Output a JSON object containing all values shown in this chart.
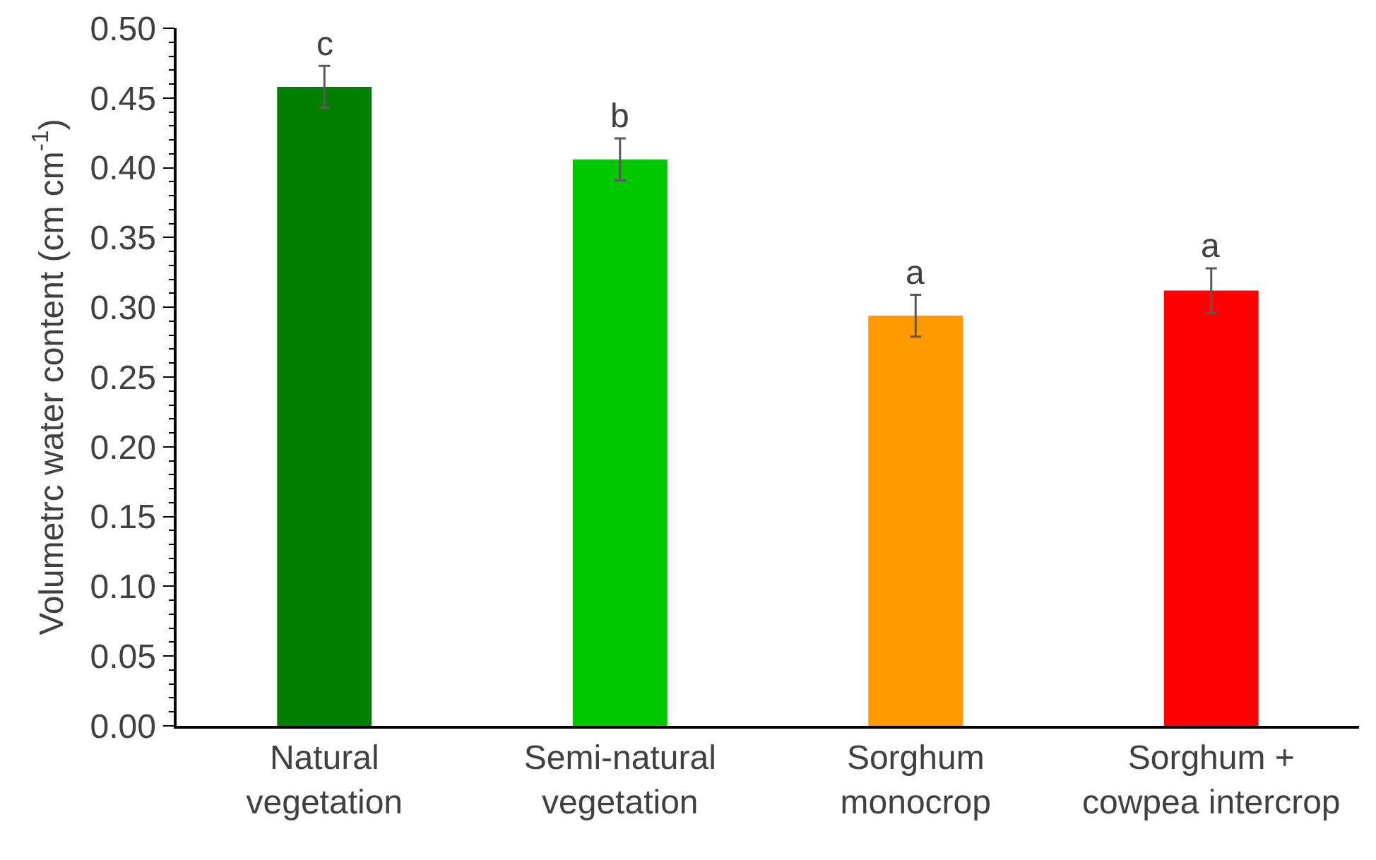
{
  "chart_data": {
    "type": "bar",
    "ylabel": "Volumetrc water content (cm cm$^{-1}$)",
    "categories": [
      "Natural vegetation",
      "Semi-natural vegetation",
      "Sorghum monocrop",
      "Sorghum + cowpea intercrop"
    ],
    "values": [
      0.458,
      0.406,
      0.294,
      0.312
    ],
    "errors": [
      0.015,
      0.015,
      0.015,
      0.016
    ],
    "colors": [
      "#007f00",
      "#00c800",
      "#ff9900",
      "#ff0000"
    ],
    "ylim": [
      0,
      0.5
    ],
    "yticks": [
      {
        "value": 0,
        "label": "0.00"
      },
      {
        "value": 0.05,
        "label": "0.05"
      },
      {
        "value": 0.1,
        "label": "0.10"
      },
      {
        "value": 0.15,
        "label": "0.15"
      },
      {
        "value": 0.2,
        "label": "0.20"
      },
      {
        "value": 0.25,
        "label": "0.25"
      },
      {
        "value": 0.3,
        "label": "0.30"
      },
      {
        "value": 0.35,
        "label": "0.35"
      },
      {
        "value": 0.4,
        "label": "0.40"
      },
      {
        "value": 0.45,
        "label": "0.45"
      },
      {
        "value": 0.5,
        "label": "0.50"
      }
    ],
    "annotations": [
      {
        "text": "c",
        "x": "Natural vegetation",
        "y": 0.473
      },
      {
        "text": "b",
        "x": "Semi-natural vegetation",
        "y": 0.421
      },
      {
        "text": "a",
        "x": "Sorghum monocrop",
        "y": 0.309
      },
      {
        "text": "a",
        "x": "Sorghum + cowpea intercrop",
        "y": 0.328
      }
    ],
    "grid": false
  }
}
